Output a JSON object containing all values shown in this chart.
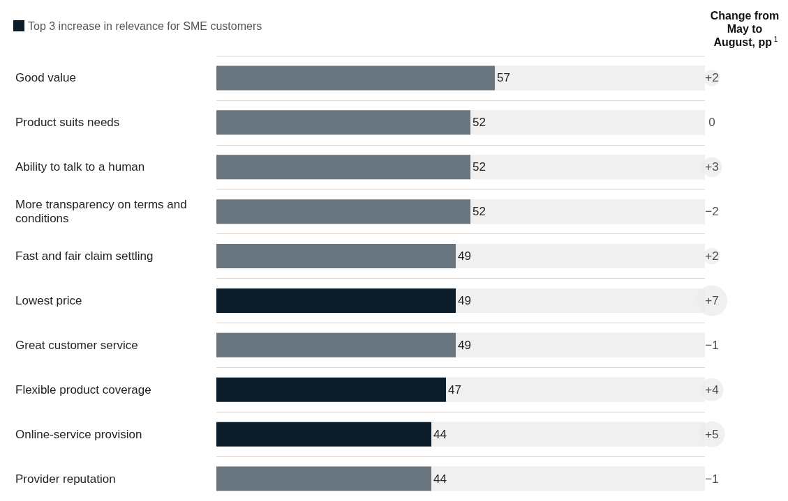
{
  "chart_data": [
    {
      "type": "bar",
      "orientation": "horizontal",
      "stacked": true,
      "data_labels": true,
      "legend": "top left",
      "grid": "y",
      "categories": [
        "Good value",
        "Product suits needs",
        "Ability to talk to a human",
        "More transparency on terms and conditions",
        "Fast and fair claim settling",
        "Lowest price",
        "Great customer service",
        "Flexible product coverage",
        "Online-service provision",
        "Provider reputation"
      ],
      "xlim": [
        0,
        100
      ],
      "series": [
        {
          "name": "Top 3 increase in relevance for SME customers",
          "color": "#0b1d2b",
          "values": [
            null,
            null,
            null,
            null,
            null,
            49,
            null,
            47,
            44,
            null
          ]
        },
        {
          "color": "#69767f",
          "values": [
            57,
            52,
            52,
            52,
            49,
            null,
            49,
            null,
            null,
            44
          ]
        }
      ]
    },
    {
      "type": "other",
      "title": "Change from May to August, pp$^{1}$",
      "values": [
        2,
        0,
        3,
        -2,
        2,
        7,
        -1,
        4,
        5,
        -1
      ],
      "value_labels": [
        "+2",
        "0",
        "+3",
        "−2",
        "+2",
        "+7",
        "−1",
        "+4",
        "+5",
        "−1"
      ]
    }
  ]
}
